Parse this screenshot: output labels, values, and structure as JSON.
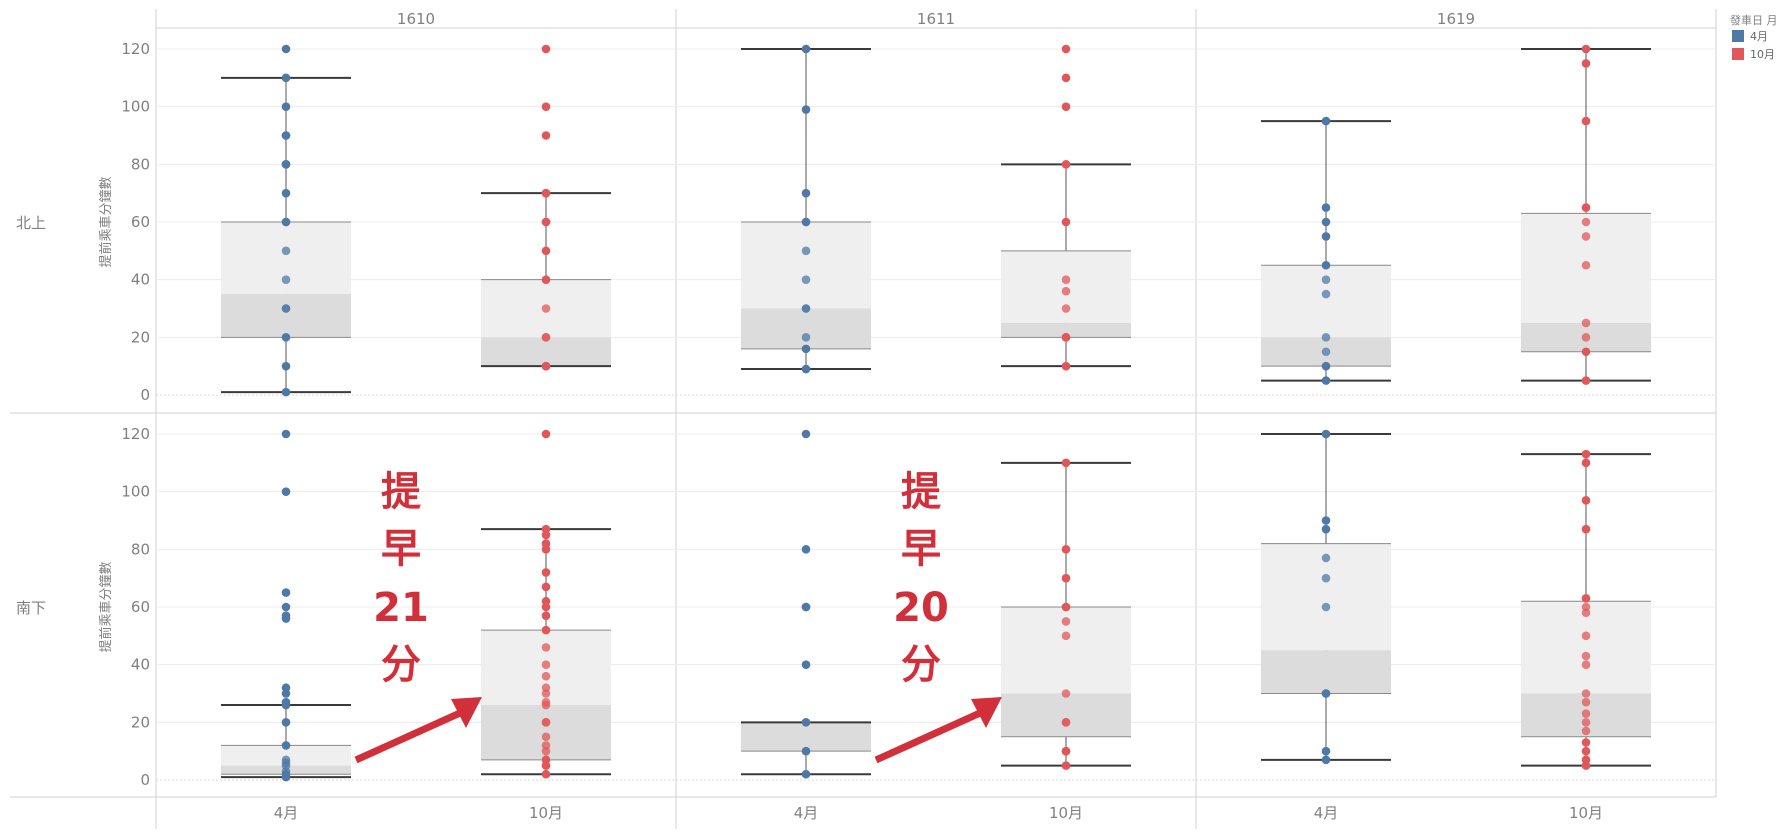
{
  "legend": {
    "title": "發車日 月",
    "items": [
      {
        "label": "4月",
        "color": "#4e79a7"
      },
      {
        "label": "10月",
        "color": "#e15759"
      }
    ]
  },
  "colors": {
    "box_upper": "#efefef",
    "box_lower": "#dcdcdc",
    "whisker": "#555555",
    "grid": "#ececec",
    "axis_text": "#808080",
    "annotation": "#d1303a"
  },
  "chart_data": {
    "type": "box-plot",
    "columns": [
      "1610",
      "1611",
      "1619"
    ],
    "rows": [
      "北上",
      "南下"
    ],
    "categories": [
      "4月",
      "10月"
    ],
    "ylabel": "提前乘車分鐘數",
    "yticks": [
      0,
      20,
      40,
      60,
      80,
      100,
      120
    ],
    "ylim": [
      -2,
      126
    ],
    "grid": true,
    "legend_position": "right",
    "panels": [
      {
        "row": "北上",
        "column": "1610",
        "boxes": [
          {
            "category": "4月",
            "whisker_low": 1,
            "q1": 20,
            "median": 35,
            "q3": 60,
            "whisker_high": 110,
            "points": [
              1,
              10,
              20,
              30,
              30,
              40,
              50,
              60,
              60,
              70,
              80,
              80,
              90,
              90,
              100,
              110,
              120
            ]
          },
          {
            "category": "10月",
            "whisker_low": 10,
            "q1": 10,
            "median": 20,
            "q3": 40,
            "whisker_high": 70,
            "points": [
              10,
              10,
              20,
              20,
              30,
              40,
              50,
              60,
              60,
              70,
              70,
              90,
              100,
              120
            ]
          }
        ]
      },
      {
        "row": "北上",
        "column": "1611",
        "boxes": [
          {
            "category": "4月",
            "whisker_low": 9,
            "q1": 16,
            "median": 30,
            "q3": 60,
            "whisker_high": 120,
            "points": [
              9,
              16,
              20,
              30,
              30,
              40,
              50,
              60,
              60,
              70,
              99,
              120
            ]
          },
          {
            "category": "10月",
            "whisker_low": 10,
            "q1": 20,
            "median": 25,
            "q3": 50,
            "whisker_high": 80,
            "points": [
              10,
              20,
              20,
              30,
              36,
              40,
              60,
              80,
              100,
              110,
              120
            ]
          }
        ]
      },
      {
        "row": "北上",
        "column": "1619",
        "boxes": [
          {
            "category": "4月",
            "whisker_low": 5,
            "q1": 10,
            "median": 20,
            "q3": 45,
            "whisker_high": 95,
            "points": [
              5,
              10,
              15,
              20,
              35,
              40,
              45,
              55,
              60,
              65,
              95
            ]
          },
          {
            "category": "10月",
            "whisker_low": 5,
            "q1": 15,
            "median": 25,
            "q3": 63,
            "whisker_high": 120,
            "points": [
              5,
              15,
              20,
              25,
              45,
              55,
              60,
              65,
              95,
              115,
              120
            ]
          }
        ]
      },
      {
        "row": "南下",
        "column": "1610",
        "boxes": [
          {
            "category": "4月",
            "whisker_low": 1,
            "q1": 2,
            "median": 5,
            "q3": 12,
            "whisker_high": 26,
            "points": [
              1,
              2,
              3,
              5,
              6,
              7,
              12,
              20,
              26,
              27,
              30,
              32,
              56,
              57,
              60,
              65,
              100,
              120
            ]
          },
          {
            "category": "10月",
            "whisker_low": 2,
            "q1": 7,
            "median": 26,
            "q3": 52,
            "whisker_high": 87,
            "points": [
              2,
              5,
              7,
              10,
              12,
              15,
              20,
              20,
              26,
              27,
              30,
              32,
              36,
              40,
              46,
              52,
              57,
              60,
              62,
              67,
              72,
              80,
              82,
              85,
              87,
              120
            ]
          }
        ]
      },
      {
        "row": "南下",
        "column": "1611",
        "boxes": [
          {
            "category": "4月",
            "whisker_low": 2,
            "q1": 10,
            "median": 20,
            "q3": 20,
            "whisker_high": 20,
            "points": [
              2,
              10,
              20,
              40,
              60,
              60,
              80,
              120
            ]
          },
          {
            "category": "10月",
            "whisker_low": 5,
            "q1": 15,
            "median": 30,
            "q3": 60,
            "whisker_high": 110,
            "points": [
              5,
              10,
              10,
              20,
              20,
              30,
              50,
              55,
              60,
              60,
              70,
              80,
              110
            ]
          }
        ]
      },
      {
        "row": "南下",
        "column": "1619",
        "boxes": [
          {
            "category": "4月",
            "whisker_low": 7,
            "q1": 30,
            "median": 45,
            "q3": 82,
            "whisker_high": 120,
            "points": [
              7,
              10,
              30,
              30,
              60,
              70,
              77,
              87,
              90,
              120
            ]
          },
          {
            "category": "10月",
            "whisker_low": 5,
            "q1": 15,
            "median": 30,
            "q3": 62,
            "whisker_high": 113,
            "points": [
              5,
              7,
              10,
              13,
              17,
              20,
              23,
              27,
              30,
              40,
              43,
              50,
              58,
              60,
              63,
              87,
              97,
              110,
              113
            ]
          }
        ]
      }
    ],
    "annotations": [
      {
        "column": "1610",
        "row": "南下",
        "lines": [
          "提",
          "早",
          "21",
          "分"
        ]
      },
      {
        "column": "1611",
        "row": "南下",
        "lines": [
          "提",
          "早",
          "20",
          "分"
        ]
      }
    ]
  }
}
